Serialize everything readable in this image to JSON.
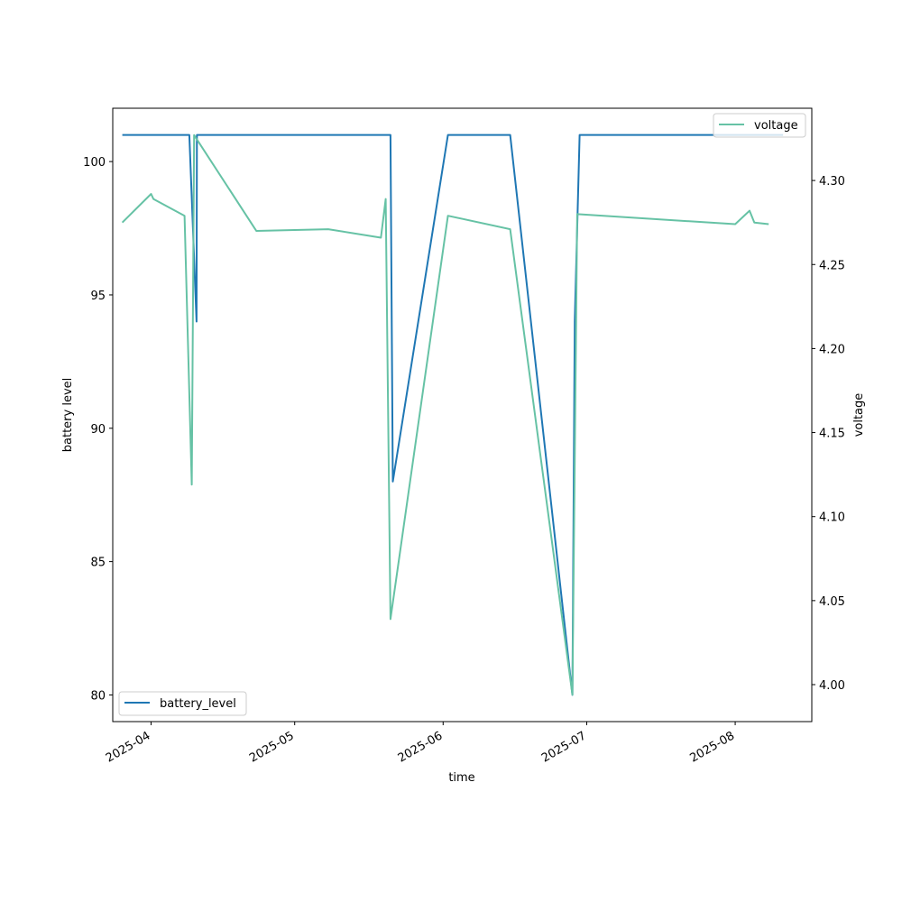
{
  "chart_data": {
    "type": "line",
    "title": "",
    "xlabel": "time",
    "ylabel_left": "battery level",
    "ylabel_right": "voltage",
    "x_ticks": [
      "2025-04",
      "2025-05",
      "2025-06",
      "2025-07",
      "2025-08"
    ],
    "x_tick_dates": [
      "2025-04-01",
      "2025-05-01",
      "2025-06-01",
      "2025-07-01",
      "2025-08-01"
    ],
    "xlim": [
      "2025-03-24",
      "2025-08-17"
    ],
    "ylim_left": [
      79,
      102
    ],
    "ylim_right": [
      3.978,
      4.343
    ],
    "y_ticks_left": [
      80,
      85,
      90,
      95,
      100
    ],
    "y_ticks_right": [
      4.0,
      4.05,
      4.1,
      4.15,
      4.2,
      4.25,
      4.3
    ],
    "y_tick_labels_right": [
      "4.00",
      "4.05",
      "4.10",
      "4.15",
      "4.20",
      "4.25",
      "4.30"
    ],
    "grid": false,
    "series": [
      {
        "name": "battery_level",
        "axis": "left",
        "color": "#1f77b4",
        "legend_position": "lower-left",
        "points": [
          [
            "2025-03-26 00:00",
            101
          ],
          [
            "2025-04-09 00:00",
            101
          ],
          [
            "2025-04-10 12:00",
            94
          ],
          [
            "2025-04-10 14:00",
            101
          ],
          [
            "2025-05-21 00:00",
            101
          ],
          [
            "2025-05-21 12:00",
            88
          ],
          [
            "2025-06-02 00:00",
            101
          ],
          [
            "2025-06-15 00:00",
            101
          ],
          [
            "2025-06-28 00:00",
            80
          ],
          [
            "2025-06-28 12:00",
            94
          ],
          [
            "2025-06-29 12:00",
            101
          ],
          [
            "2025-08-11 00:00",
            101
          ]
        ]
      },
      {
        "name": "voltage",
        "axis": "right",
        "color": "#66c2a5",
        "legend_position": "upper-right",
        "points": [
          [
            "2025-03-26 00:00",
            4.275
          ],
          [
            "2025-04-01 00:00",
            4.292
          ],
          [
            "2025-04-01 12:00",
            4.289
          ],
          [
            "2025-04-08 00:00",
            4.279
          ],
          [
            "2025-04-09 12:00",
            4.119
          ],
          [
            "2025-04-10 00:00",
            4.327
          ],
          [
            "2025-04-23 00:00",
            4.27
          ],
          [
            "2025-05-08 00:00",
            4.271
          ],
          [
            "2025-05-19 00:00",
            4.266
          ],
          [
            "2025-05-20 00:00",
            4.289
          ],
          [
            "2025-05-21 00:00",
            4.039
          ],
          [
            "2025-06-02 00:00",
            4.279
          ],
          [
            "2025-06-15 00:00",
            4.271
          ],
          [
            "2025-06-28 00:00",
            3.994
          ],
          [
            "2025-06-29 00:00",
            4.28
          ],
          [
            "2025-08-01 00:00",
            4.274
          ],
          [
            "2025-08-04 00:00",
            4.282
          ],
          [
            "2025-08-05 00:00",
            4.275
          ],
          [
            "2025-08-08 00:00",
            4.274
          ]
        ]
      }
    ]
  }
}
